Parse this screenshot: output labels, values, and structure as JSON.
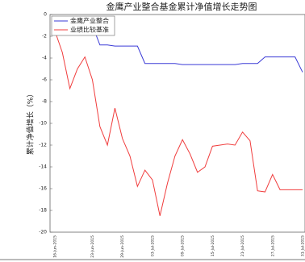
{
  "chart_data": {
    "type": "line",
    "title": "金鹰产业整合基金累计净值增长走势图",
    "y_label": "累计净值增长（%）",
    "categories": [
      "16-Jun-2015",
      null,
      null,
      null,
      null,
      "23-Jun-2015",
      null,
      null,
      null,
      "29-Jun-2015",
      null,
      null,
      null,
      "03-Jul-2015",
      null,
      null,
      null,
      "09-Jul-2015",
      null,
      null,
      null,
      "15-Jul-2015",
      null,
      null,
      null,
      "21-Jul-2015",
      null,
      null,
      null,
      "27-Jul-2015",
      null,
      null,
      null,
      "31-Jul-2015"
    ],
    "series": [
      {
        "name": "金鹰产业整合",
        "color": "#3a3ad6",
        "values": [
          -0.3,
          -0.5,
          -0.8,
          -0.9,
          -1,
          -1,
          -2.8,
          -2.8,
          -2.9,
          -2.9,
          -2.9,
          -2.9,
          -4.5,
          -4.5,
          -4.5,
          -4.5,
          -4.5,
          -4.6,
          -4.6,
          -4.6,
          -4.6,
          -4.6,
          -4.6,
          -4.6,
          -4.6,
          -4.5,
          -4.5,
          -4.5,
          -3.9,
          -3.9,
          -3.9,
          -3.9,
          -3.9,
          -5.3
        ]
      },
      {
        "name": "业绩比较基准",
        "color": "#f03c3c",
        "values": [
          -1.5,
          -3.5,
          -6.8,
          -5,
          -3.9,
          -6,
          -10.3,
          -12,
          -8.6,
          -11.4,
          -13,
          -15.8,
          -14.3,
          -15.2,
          -18.5,
          -15.5,
          -13,
          -11.5,
          -12.8,
          -14.5,
          -14,
          -12.1,
          -12,
          -11.9,
          -12,
          -10.8,
          -11.6,
          -16.2,
          -16.3,
          -14.7,
          -16.1,
          -16.1,
          -16.1,
          -16.1
        ]
      }
    ],
    "ylim": [
      0,
      -20
    ],
    "yticks": [
      0,
      -2,
      -4,
      -6,
      -8,
      -10,
      -12,
      -14,
      -16,
      -18,
      -20
    ],
    "legend": "upper left"
  }
}
